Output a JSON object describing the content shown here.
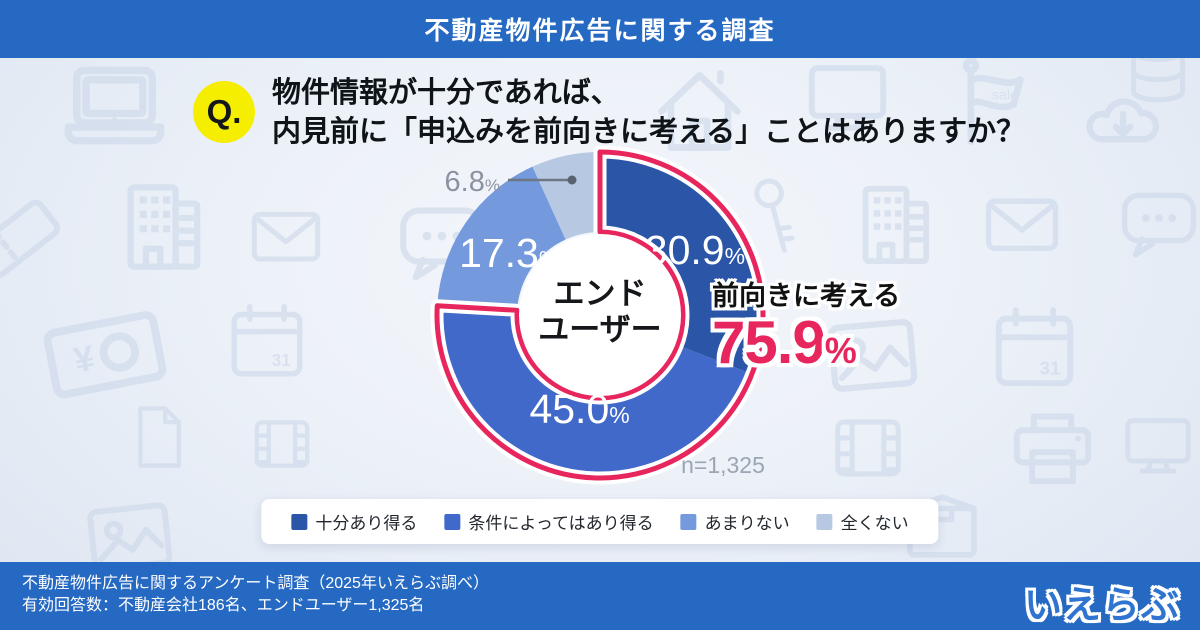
{
  "header": {
    "title": "不動産物件広告に関する調査"
  },
  "question": {
    "badge": "Q.",
    "line1": "物件情報が十分であれば、",
    "line2": "内見前に「申込みを前向きに考える」ことはありますか？"
  },
  "chart_data": {
    "type": "pie",
    "subtype": "donut",
    "categories": [
      "十分あり得る",
      "条件によってはあり得る",
      "あまりない",
      "全くない"
    ],
    "values": [
      30.9,
      45.0,
      17.3,
      6.8
    ],
    "unit": "%",
    "colors": [
      "#2b55a7",
      "#4169c9",
      "#7499dd",
      "#b7c8e2"
    ],
    "start_angle_deg": 0,
    "direction": "clockwise",
    "center_label": [
      "エンド",
      "ユーザー"
    ],
    "sample_label": "n=1,325",
    "legend_position": "bottom",
    "highlight": {
      "label": "前向きに考える",
      "value": "75.9",
      "unit": "%",
      "slice_indexes": [
        0,
        1
      ],
      "color": "#e8265e"
    }
  },
  "footer": {
    "line1": "不動産物件広告に関するアンケート調査（2025年いえらぶ調べ）",
    "line2": "有効回答数：不動産会社186名、エンドユーザー1,325名",
    "logo": "いえらぶ"
  },
  "decor": {
    "background_icons": [
      "laptop",
      "ticket",
      "building",
      "envelope",
      "speech-bubble",
      "banknote-yen",
      "calendar",
      "document",
      "film",
      "photo",
      "house",
      "monitor",
      "sale-flag",
      "cloud",
      "database",
      "key",
      "printer",
      "box"
    ],
    "sale_tag_text": "sale",
    "calendar_day": "31"
  }
}
